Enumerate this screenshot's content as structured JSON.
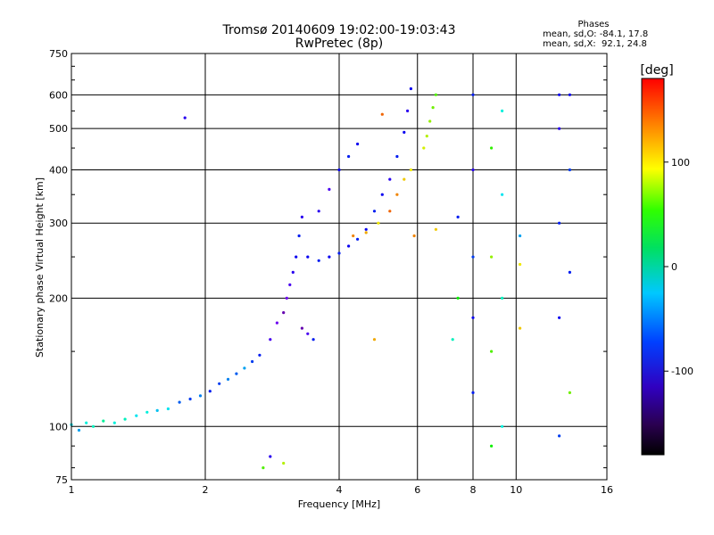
{
  "chart_data": {
    "type": "scatter",
    "title": "Tromsø 20140609 19:02:00-19:03:43",
    "subtitle": "RwPretec (8p)",
    "xlabel": "Frequency [MHz]",
    "ylabel": "Stationary phase Virtual Height [km]",
    "x_scale": "log",
    "y_scale": "log",
    "xlim": [
      1,
      16
    ],
    "ylim": [
      75,
      750
    ],
    "x_ticks": [
      1,
      2,
      4,
      6,
      8,
      10,
      16
    ],
    "y_ticks": [
      75,
      100,
      200,
      300,
      400,
      500,
      600,
      750
    ],
    "grid": true,
    "legend": {
      "title": "Phases",
      "lines": [
        "mean, sd,O: -84.1, 17.8",
        "mean, sd,X:  92.1, 24.8"
      ],
      "placement": "top-right"
    },
    "colorbar": {
      "label": "[deg]",
      "ticks": [
        100,
        0,
        -100
      ],
      "range": [
        -180,
        180
      ],
      "colormap": "rainbow"
    },
    "series": [
      {
        "points": [
          [
            1.0,
            101,
            -40
          ],
          [
            1.04,
            98,
            -60
          ],
          [
            1.08,
            102,
            -30
          ],
          [
            1.12,
            100,
            -20
          ],
          [
            1.18,
            103,
            -10
          ],
          [
            1.25,
            102,
            -30
          ],
          [
            1.32,
            104,
            -20
          ],
          [
            1.4,
            106,
            -40
          ],
          [
            1.48,
            108,
            -30
          ],
          [
            1.56,
            109,
            -50
          ],
          [
            1.65,
            110,
            -40
          ],
          [
            1.75,
            114,
            -80
          ],
          [
            1.85,
            116,
            -90
          ],
          [
            1.95,
            118,
            -70
          ],
          [
            2.05,
            121,
            -100
          ],
          [
            2.15,
            126,
            -90
          ],
          [
            2.25,
            129,
            -70
          ],
          [
            2.35,
            133,
            -80
          ],
          [
            2.45,
            137,
            -60
          ],
          [
            2.55,
            142,
            -90
          ],
          [
            2.65,
            147,
            -100
          ],
          [
            2.8,
            160,
            -130
          ],
          [
            2.9,
            175,
            -140
          ],
          [
            3.0,
            185,
            -150
          ],
          [
            3.05,
            200,
            -140
          ],
          [
            3.1,
            215,
            -130
          ],
          [
            3.15,
            230,
            -120
          ],
          [
            3.2,
            250,
            -110
          ],
          [
            3.25,
            280,
            -100
          ],
          [
            3.3,
            310,
            -120
          ],
          [
            3.3,
            170,
            -150
          ],
          [
            3.4,
            165,
            -130
          ],
          [
            3.5,
            160,
            -100
          ],
          [
            3.4,
            250,
            -110
          ],
          [
            3.6,
            245,
            -100
          ],
          [
            3.8,
            250,
            -110
          ],
          [
            4.0,
            255,
            -100
          ],
          [
            4.2,
            265,
            -110
          ],
          [
            4.4,
            275,
            -100
          ],
          [
            4.6,
            290,
            -110
          ],
          [
            4.8,
            320,
            -100
          ],
          [
            5.0,
            350,
            -110
          ],
          [
            5.2,
            380,
            -120
          ],
          [
            5.4,
            430,
            -100
          ],
          [
            5.6,
            490,
            -110
          ],
          [
            5.7,
            550,
            -120
          ],
          [
            5.8,
            620,
            -110
          ],
          [
            3.6,
            320,
            -120
          ],
          [
            3.8,
            360,
            -130
          ],
          [
            4.0,
            400,
            -110
          ],
          [
            4.2,
            430,
            -100
          ],
          [
            4.4,
            460,
            -110
          ],
          [
            4.3,
            280,
            140
          ],
          [
            4.6,
            285,
            130
          ],
          [
            4.9,
            300,
            110
          ],
          [
            5.2,
            320,
            150
          ],
          [
            5.4,
            350,
            140
          ],
          [
            5.6,
            380,
            120
          ],
          [
            5.8,
            400,
            110
          ],
          [
            6.2,
            450,
            100
          ],
          [
            6.3,
            480,
            90
          ],
          [
            6.4,
            520,
            80
          ],
          [
            6.5,
            560,
            70
          ],
          [
            6.6,
            600,
            60
          ],
          [
            5.0,
            540,
            150
          ],
          [
            4.8,
            160,
            130
          ],
          [
            5.9,
            280,
            140
          ],
          [
            6.6,
            290,
            120
          ],
          [
            8.0,
            120,
            -100
          ],
          [
            8.0,
            180,
            -110
          ],
          [
            8.0,
            250,
            -90
          ],
          [
            8.0,
            400,
            -120
          ],
          [
            8.0,
            600,
            -100
          ],
          [
            8.8,
            90,
            40
          ],
          [
            8.8,
            150,
            60
          ],
          [
            8.8,
            250,
            80
          ],
          [
            8.8,
            450,
            50
          ],
          [
            9.3,
            100,
            -30
          ],
          [
            9.3,
            200,
            -20
          ],
          [
            9.3,
            350,
            -40
          ],
          [
            9.3,
            550,
            -30
          ],
          [
            10.2,
            170,
            120
          ],
          [
            10.2,
            240,
            110
          ],
          [
            10.2,
            280,
            -60
          ],
          [
            12.5,
            95,
            -90
          ],
          [
            12.5,
            180,
            -110
          ],
          [
            12.5,
            300,
            -100
          ],
          [
            12.5,
            500,
            -120
          ],
          [
            12.5,
            600,
            -110
          ],
          [
            13.2,
            120,
            70
          ],
          [
            13.2,
            230,
            -100
          ],
          [
            13.2,
            400,
            -90
          ],
          [
            13.2,
            600,
            -110
          ],
          [
            7.4,
            310,
            -100
          ],
          [
            7.4,
            200,
            40
          ],
          [
            7.2,
            160,
            -20
          ],
          [
            1.8,
            530,
            -120
          ],
          [
            2.7,
            80,
            60
          ],
          [
            2.8,
            85,
            -120
          ],
          [
            3.0,
            82,
            90
          ]
        ]
      }
    ]
  }
}
